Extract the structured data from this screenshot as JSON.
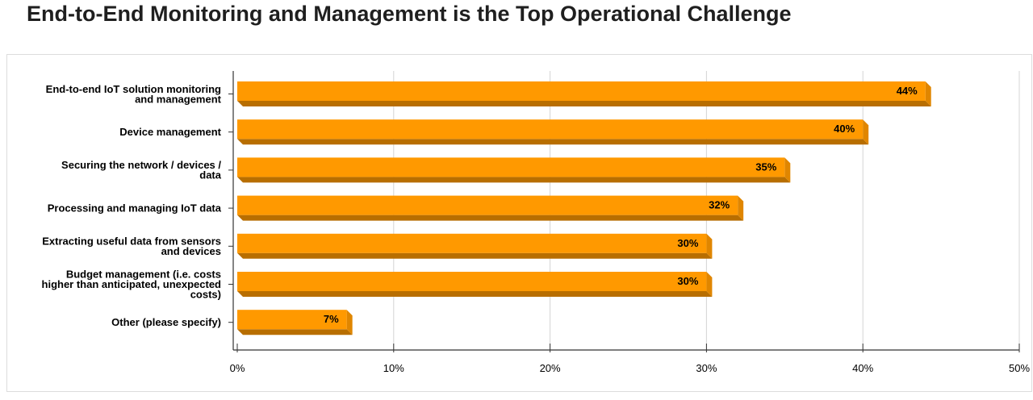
{
  "page": {
    "title": "End-to-End Monitoring and Management is the Top Operational Challenge"
  },
  "chart_data": {
    "type": "bar",
    "orientation": "horizontal",
    "title": "",
    "xlabel": "",
    "ylabel": "",
    "xlim": [
      0,
      50
    ],
    "grid": true,
    "bar_color": "#ff9900",
    "bar_shadow_color": "#b86e00",
    "categories": [
      [
        "End-to-end IoT solution monitoring",
        "and management"
      ],
      [
        "Device management"
      ],
      [
        "Securing the network / devices /",
        "data"
      ],
      [
        "Processing and managing IoT data"
      ],
      [
        "Extracting useful data from sensors",
        "and devices"
      ],
      [
        "Budget management (i.e. costs",
        "higher than anticipated, unexpected",
        "costs)"
      ],
      [
        "Other (please specify)"
      ]
    ],
    "values": [
      44,
      40,
      35,
      32,
      30,
      30,
      7
    ],
    "labels": [
      "44%",
      "40%",
      "35%",
      "32%",
      "30%",
      "30%",
      "7%"
    ],
    "ticks": [
      0,
      10,
      20,
      30,
      40,
      50
    ],
    "tick_labels": [
      "0%",
      "10%",
      "20%",
      "30%",
      "40%",
      "50%"
    ]
  }
}
